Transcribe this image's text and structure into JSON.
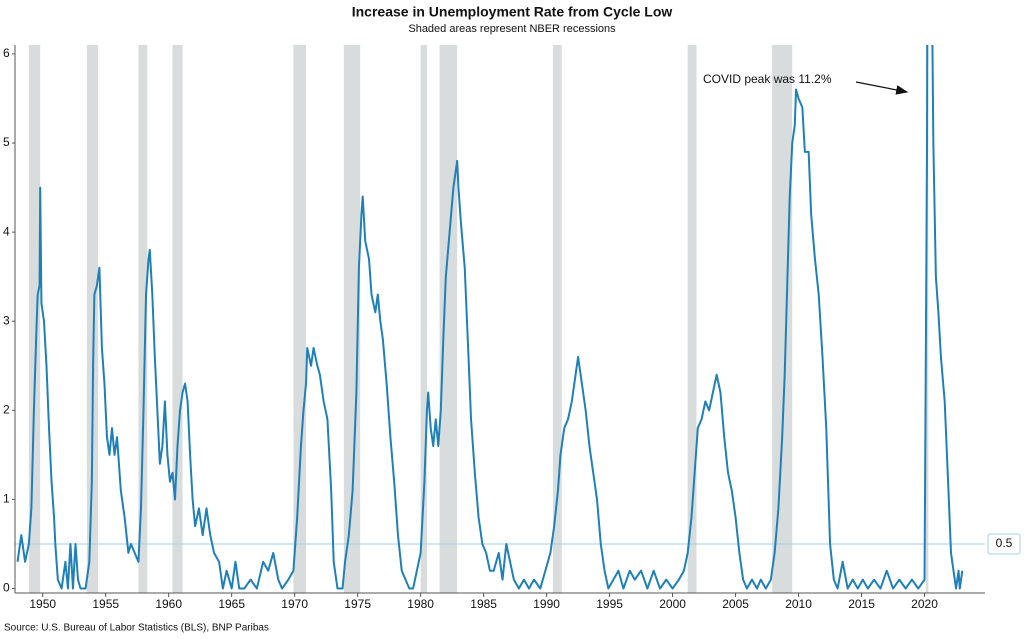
{
  "chart_data": {
    "type": "line",
    "title": "Increase in Unemployment Rate from Cycle Low",
    "subtitle": "Shaded areas represent NBER recessions",
    "source": "Source: U.S. Bureau of Labor Statistics (BLS), BNP Paribas",
    "annotation": "COVID peak was 11.2%",
    "color": "#1f80b8",
    "recession_color": "#d9dcdd",
    "reference_line": 0.5,
    "xlim": [
      1947.8,
      2024.8
    ],
    "ylim": [
      -0.05,
      6.1
    ],
    "xticks": [
      1950,
      1955,
      1960,
      1965,
      1970,
      1975,
      1980,
      1985,
      1990,
      1995,
      2000,
      2005,
      2010,
      2015,
      2020
    ],
    "yticks": [
      0,
      1,
      2,
      3,
      4,
      5,
      6
    ],
    "recessions": [
      [
        1948.9,
        1949.8
      ],
      [
        1953.5,
        1954.4
      ],
      [
        1957.6,
        1958.3
      ],
      [
        1960.3,
        1961.1
      ],
      [
        1969.9,
        1970.9
      ],
      [
        1973.9,
        1975.2
      ],
      [
        1980.0,
        1980.5
      ],
      [
        1981.5,
        1982.9
      ],
      [
        1990.5,
        1991.2
      ],
      [
        2001.2,
        2001.9
      ],
      [
        2007.9,
        2009.5
      ],
      [
        2020.1,
        2020.3
      ]
    ],
    "x": [
      1948.0,
      1948.3,
      1948.6,
      1948.9,
      1949.1,
      1949.3,
      1949.5,
      1949.6,
      1949.75,
      1949.8,
      1949.9,
      1950.1,
      1950.3,
      1950.5,
      1950.7,
      1950.9,
      1951.0,
      1951.2,
      1951.5,
      1951.8,
      1952.0,
      1952.2,
      1952.4,
      1952.6,
      1952.8,
      1953.0,
      1953.4,
      1953.7,
      1953.9,
      1954.0,
      1954.1,
      1954.3,
      1954.5,
      1954.7,
      1954.9,
      1955.1,
      1955.3,
      1955.5,
      1955.7,
      1955.9,
      1956.2,
      1956.5,
      1956.8,
      1957.0,
      1957.3,
      1957.6,
      1957.8,
      1958.0,
      1958.2,
      1958.4,
      1958.5,
      1958.7,
      1958.9,
      1959.1,
      1959.3,
      1959.5,
      1959.7,
      1959.9,
      1960.1,
      1960.3,
      1960.5,
      1960.7,
      1960.9,
      1961.1,
      1961.3,
      1961.5,
      1961.7,
      1961.9,
      1962.1,
      1962.4,
      1962.7,
      1963.0,
      1963.3,
      1963.6,
      1964.0,
      1964.3,
      1964.6,
      1965.0,
      1965.3,
      1965.6,
      1966.0,
      1966.5,
      1967.0,
      1967.5,
      1967.9,
      1968.3,
      1968.7,
      1969.0,
      1969.5,
      1969.9,
      1970.2,
      1970.5,
      1970.7,
      1970.9,
      1971.0,
      1971.3,
      1971.5,
      1971.8,
      1972.0,
      1972.3,
      1972.6,
      1972.9,
      1973.1,
      1973.4,
      1973.8,
      1974.0,
      1974.3,
      1974.6,
      1974.9,
      1975.1,
      1975.3,
      1975.4,
      1975.6,
      1975.9,
      1976.1,
      1976.4,
      1976.6,
      1976.8,
      1977.0,
      1977.3,
      1977.6,
      1977.9,
      1978.2,
      1978.5,
      1978.8,
      1979.1,
      1979.4,
      1979.7,
      1980.0,
      1980.3,
      1980.5,
      1980.6,
      1980.8,
      1981.0,
      1981.2,
      1981.4,
      1981.6,
      1981.8,
      1982.0,
      1982.3,
      1982.6,
      1982.9,
      1983.0,
      1983.2,
      1983.5,
      1983.8,
      1984.0,
      1984.3,
      1984.6,
      1984.9,
      1985.2,
      1985.5,
      1985.8,
      1986.2,
      1986.5,
      1986.8,
      1987.1,
      1987.4,
      1987.8,
      1988.2,
      1988.6,
      1989.0,
      1989.5,
      1989.9,
      1990.3,
      1990.6,
      1990.9,
      1991.1,
      1991.4,
      1991.7,
      1992.0,
      1992.3,
      1992.5,
      1992.8,
      1993.1,
      1993.4,
      1993.7,
      1994.0,
      1994.3,
      1994.6,
      1994.9,
      1995.3,
      1995.7,
      1996.1,
      1996.6,
      1997.0,
      1997.5,
      1998.0,
      1998.5,
      1999.0,
      1999.5,
      2000.0,
      2000.5,
      2000.9,
      2001.2,
      2001.5,
      2001.8,
      2002.0,
      2002.3,
      2002.6,
      2002.9,
      2003.2,
      2003.5,
      2003.8,
      2004.1,
      2004.4,
      2004.7,
      2005.0,
      2005.3,
      2005.6,
      2005.9,
      2006.3,
      2006.7,
      2007.0,
      2007.4,
      2007.8,
      2008.1,
      2008.4,
      2008.7,
      2008.9,
      2009.1,
      2009.3,
      2009.5,
      2009.7,
      2009.8,
      2010.0,
      2010.3,
      2010.5,
      2010.8,
      2011.0,
      2011.3,
      2011.6,
      2011.9,
      2012.2,
      2012.5,
      2012.8,
      2013.1,
      2013.5,
      2013.9,
      2014.3,
      2014.7,
      2015.1,
      2015.5,
      2016.0,
      2016.5,
      2017.0,
      2017.5,
      2018.0,
      2018.5,
      2019.0,
      2019.5,
      2020.0,
      2020.2,
      2020.3,
      2020.5,
      2020.7,
      2020.9,
      2021.1,
      2021.3,
      2021.6,
      2021.9,
      2022.1,
      2022.3,
      2022.5,
      2022.7,
      2022.8,
      2023.0
    ],
    "values": [
      0.3,
      0.6,
      0.3,
      0.5,
      0.9,
      2.0,
      2.9,
      3.3,
      3.4,
      4.5,
      3.2,
      3.0,
      2.5,
      1.8,
      1.2,
      0.8,
      0.5,
      0.1,
      0.0,
      0.3,
      0.0,
      0.5,
      0.0,
      0.5,
      0.1,
      0.0,
      0.0,
      0.3,
      1.2,
      2.5,
      3.3,
      3.4,
      3.6,
      2.7,
      2.3,
      1.7,
      1.5,
      1.8,
      1.5,
      1.7,
      1.1,
      0.8,
      0.4,
      0.5,
      0.4,
      0.3,
      0.9,
      2.0,
      3.3,
      3.7,
      3.8,
      3.3,
      2.6,
      2.0,
      1.4,
      1.6,
      2.1,
      1.5,
      1.2,
      1.3,
      1.0,
      1.6,
      2.0,
      2.2,
      2.3,
      2.1,
      1.5,
      1.0,
      0.7,
      0.9,
      0.6,
      0.9,
      0.6,
      0.4,
      0.3,
      0.0,
      0.2,
      0.0,
      0.3,
      0.0,
      0.0,
      0.1,
      0.0,
      0.3,
      0.2,
      0.4,
      0.1,
      0.0,
      0.1,
      0.2,
      0.8,
      1.6,
      2.0,
      2.3,
      2.7,
      2.5,
      2.7,
      2.5,
      2.4,
      2.1,
      1.9,
      1.1,
      0.3,
      0.0,
      0.0,
      0.3,
      0.6,
      1.1,
      2.2,
      3.6,
      4.2,
      4.4,
      3.9,
      3.7,
      3.3,
      3.1,
      3.3,
      3.0,
      2.8,
      2.3,
      1.7,
      1.2,
      0.6,
      0.2,
      0.1,
      0.0,
      0.0,
      0.2,
      0.4,
      1.2,
      2.0,
      2.2,
      1.8,
      1.6,
      1.9,
      1.6,
      2.0,
      2.8,
      3.5,
      4.0,
      4.5,
      4.8,
      4.5,
      4.1,
      3.6,
      2.6,
      1.9,
      1.3,
      0.8,
      0.5,
      0.4,
      0.2,
      0.2,
      0.4,
      0.1,
      0.5,
      0.3,
      0.1,
      0.0,
      0.1,
      0.0,
      0.1,
      0.0,
      0.2,
      0.4,
      0.7,
      1.1,
      1.5,
      1.8,
      1.9,
      2.1,
      2.4,
      2.6,
      2.3,
      2.0,
      1.6,
      1.3,
      1.0,
      0.5,
      0.2,
      0.0,
      0.1,
      0.2,
      0.0,
      0.2,
      0.1,
      0.2,
      0.0,
      0.2,
      0.0,
      0.1,
      0.0,
      0.1,
      0.2,
      0.4,
      0.8,
      1.4,
      1.8,
      1.9,
      2.1,
      2.0,
      2.2,
      2.4,
      2.2,
      1.7,
      1.3,
      1.1,
      0.8,
      0.4,
      0.1,
      0.0,
      0.1,
      0.0,
      0.1,
      0.0,
      0.1,
      0.4,
      0.9,
      1.7,
      2.4,
      3.4,
      4.4,
      5.0,
      5.2,
      5.6,
      5.5,
      5.4,
      4.9,
      4.9,
      4.2,
      3.7,
      3.3,
      2.6,
      1.8,
      0.5,
      0.1,
      0.0,
      0.3,
      0.0,
      0.1,
      0.0,
      0.1,
      0.0,
      0.1,
      0.0,
      0.2,
      0.0,
      0.1,
      0.0,
      0.1,
      0.0,
      0.1,
      5.0,
      11.2,
      8.0,
      5.0,
      3.5,
      3.1,
      2.6,
      2.1,
      1.1,
      0.4,
      0.2,
      0.0,
      0.2,
      0.0,
      0.2
    ]
  }
}
